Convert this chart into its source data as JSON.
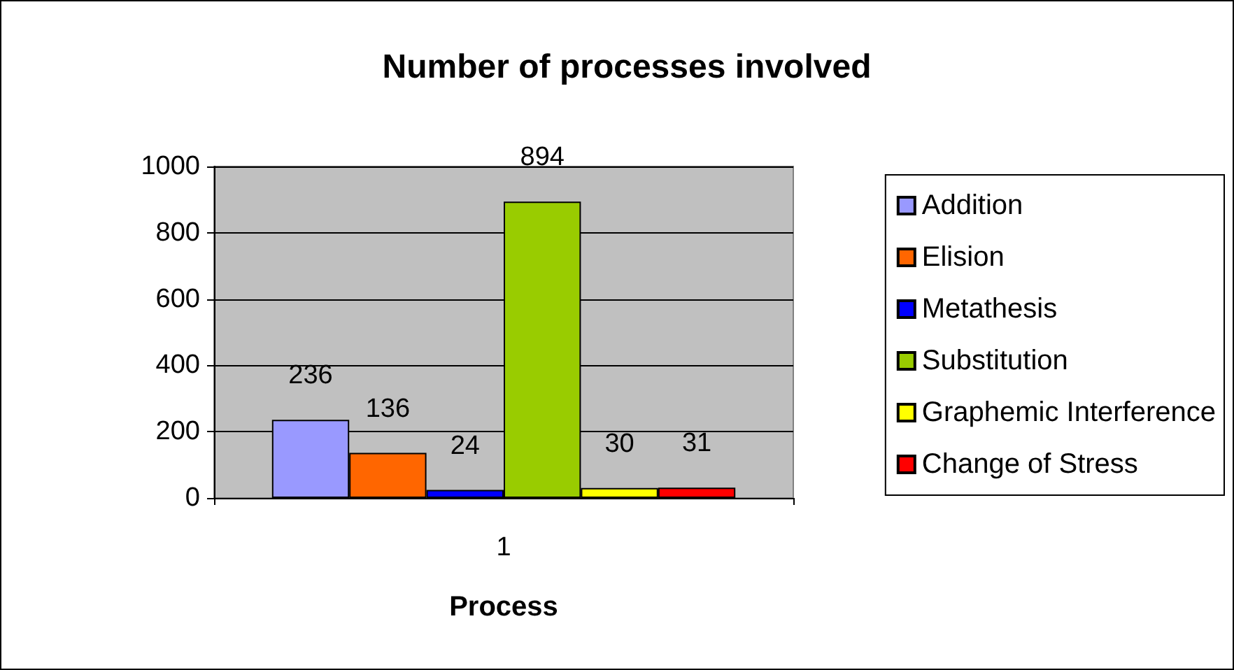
{
  "chart_data": {
    "type": "bar",
    "title": "Number of processes involved",
    "xlabel": "Process",
    "categories": [
      "1"
    ],
    "series": [
      {
        "name": "Addition",
        "color": "#9999ff",
        "values": [
          236
        ]
      },
      {
        "name": "Elision",
        "color": "#ff6600",
        "values": [
          136
        ]
      },
      {
        "name": "Metathesis",
        "color": "#0000ff",
        "values": [
          24
        ]
      },
      {
        "name": "Substitution",
        "color": "#99cc00",
        "values": [
          894
        ]
      },
      {
        "name": "Graphemic Interference",
        "color": "#ffff00",
        "values": [
          30
        ]
      },
      {
        "name": "Change of Stress",
        "color": "#ff0000",
        "values": [
          31
        ]
      }
    ],
    "ylim": [
      0,
      1000
    ],
    "yticks": [
      0,
      200,
      400,
      600,
      800,
      1000
    ],
    "grid": "y",
    "legend": "right",
    "data_labels": true
  }
}
